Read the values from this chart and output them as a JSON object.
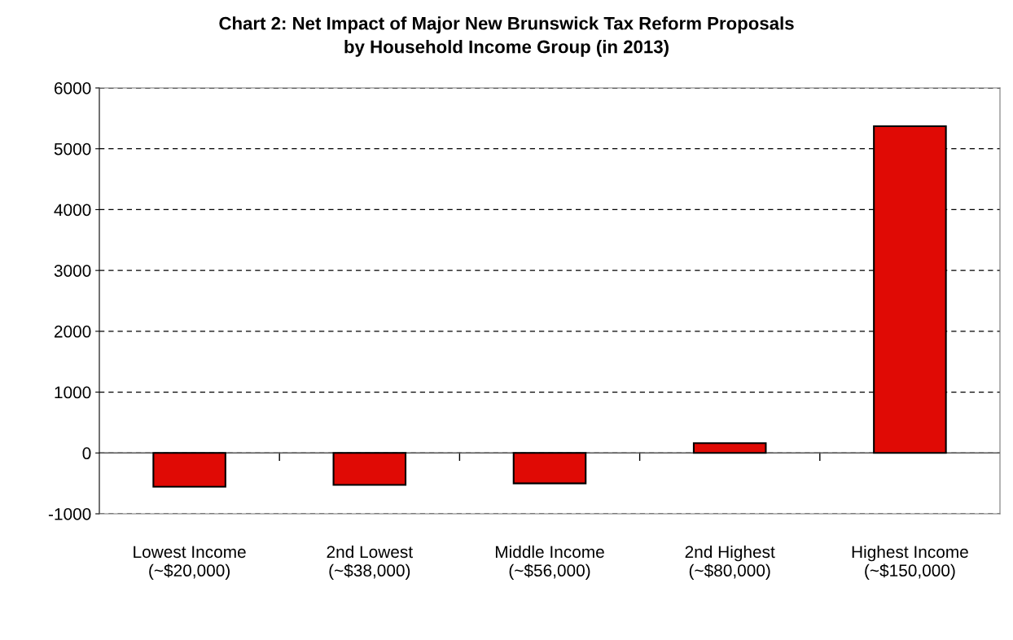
{
  "chart_data": {
    "type": "bar",
    "title": "Chart 2: Net Impact of Major New Brunswick Tax Reform Proposals\nby Household Income Group (in 2013)",
    "categories": [
      "Lowest Income\n(~$20,000)",
      "2nd Lowest\n(~$38,000)",
      "Middle Income\n(~$56,000)",
      "2nd Highest\n(~$80,000)",
      "Highest Income\n(~$150,000)"
    ],
    "values": [
      -555,
      -525,
      -500,
      160,
      5370
    ],
    "color": "#e00a05",
    "ylim": [
      -1000,
      6000
    ],
    "yticks": [
      -1000,
      0,
      1000,
      2000,
      3000,
      4000,
      5000,
      6000
    ],
    "grid": "y"
  }
}
